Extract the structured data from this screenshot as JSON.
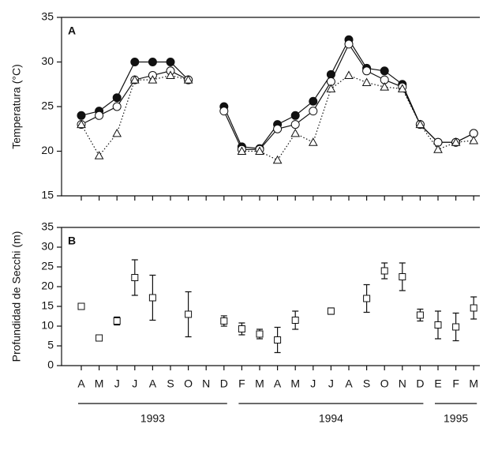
{
  "chart_data": [
    {
      "type": "line",
      "panel": "A",
      "ylabel": "Temperatura (°C)",
      "categories": [
        "A",
        "M",
        "J",
        "J",
        "A",
        "S",
        "O",
        "N",
        "D",
        "F",
        "M",
        "A",
        "M",
        "J",
        "J",
        "A",
        "S",
        "O",
        "N",
        "D",
        "E",
        "F",
        "M"
      ],
      "ylim": [
        15,
        35
      ],
      "yticks": [
        15,
        20,
        25,
        30,
        35
      ],
      "series": [
        {
          "marker": "filled-circle",
          "style": "solid",
          "values": [
            24,
            24.5,
            26,
            30,
            30,
            30,
            28,
            null,
            25,
            20.5,
            20.3,
            23,
            24,
            25.6,
            28.6,
            32.5,
            29.3,
            29,
            27.5,
            23,
            21,
            21,
            22
          ]
        },
        {
          "marker": "open-circle",
          "style": "solid",
          "values": [
            23,
            24,
            25,
            28,
            28.5,
            29,
            28,
            null,
            24.5,
            20.2,
            20.2,
            22.5,
            23,
            24.5,
            27.8,
            32,
            29,
            28,
            27.2,
            23,
            21,
            21,
            22
          ]
        },
        {
          "marker": "open-triangle",
          "style": "dotted",
          "values": [
            23,
            19.5,
            22,
            28,
            28,
            28.5,
            28,
            null,
            null,
            20,
            20,
            19,
            22,
            21,
            27,
            28.5,
            27.7,
            27.2,
            27,
            23,
            20.2,
            21,
            21.2
          ]
        }
      ]
    },
    {
      "type": "errorbar",
      "panel": "B",
      "ylabel": "Profundidad de Secchi (m)",
      "categories": [
        "A",
        "M",
        "J",
        "J",
        "A",
        "S",
        "O",
        "N",
        "D",
        "F",
        "M",
        "A",
        "M",
        "J",
        "J",
        "A",
        "S",
        "O",
        "N",
        "D",
        "E",
        "F",
        "M"
      ],
      "ylim": [
        0,
        35
      ],
      "yticks": [
        0,
        5,
        10,
        15,
        20,
        25,
        30,
        35
      ],
      "values": [
        15,
        7,
        11.3,
        22.3,
        17.2,
        null,
        13,
        null,
        11.3,
        9.3,
        8,
        6.5,
        11.5,
        null,
        13.8,
        null,
        17,
        24,
        22.5,
        12.8,
        10.3,
        9.8,
        14.6
      ],
      "errors": [
        0,
        0,
        1,
        4.5,
        5.7,
        null,
        5.7,
        null,
        1.3,
        1.5,
        1.2,
        3.2,
        2.3,
        null,
        0.8,
        null,
        3.5,
        2,
        3.5,
        1.5,
        3.5,
        3.5,
        2.8
      ],
      "years": [
        "1993",
        "1994",
        "1995"
      ]
    }
  ]
}
